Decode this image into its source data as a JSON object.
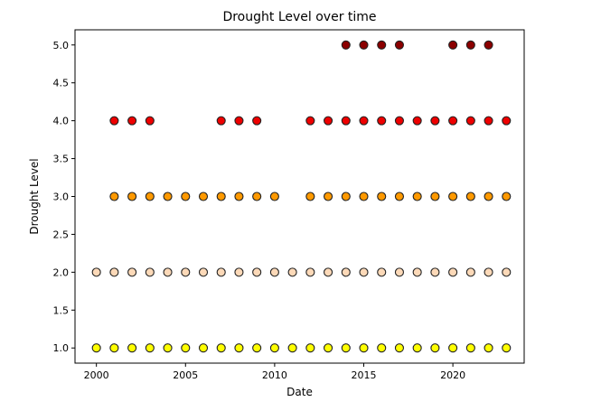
{
  "chart_data": {
    "type": "scatter",
    "title": "Drought Level over time",
    "xlabel": "Date",
    "ylabel": "Drought Level",
    "xlim": [
      1998.8,
      2024.0
    ],
    "ylim": [
      0.8,
      5.2
    ],
    "xticks": [
      2000,
      2005,
      2010,
      2015,
      2020
    ],
    "xtick_labels": [
      "2000",
      "2005",
      "2010",
      "2015",
      "2020"
    ],
    "yticks": [
      1.0,
      1.5,
      2.0,
      2.5,
      3.0,
      3.5,
      4.0,
      4.5,
      5.0
    ],
    "ytick_labels": [
      "1.0",
      "1.5",
      "2.0",
      "2.5",
      "3.0",
      "3.5",
      "4.0",
      "4.5",
      "5.0"
    ],
    "grid": false,
    "legend": "none",
    "series": [
      {
        "level": 1,
        "color": "#ffff00",
        "x": [
          2000,
          2001,
          2002,
          2003,
          2004,
          2005,
          2006,
          2007,
          2008,
          2009,
          2010,
          2011,
          2012,
          2013,
          2014,
          2015,
          2016,
          2017,
          2018,
          2019,
          2020,
          2021,
          2022,
          2023
        ],
        "y": [
          1,
          1,
          1,
          1,
          1,
          1,
          1,
          1,
          1,
          1,
          1,
          1,
          1,
          1,
          1,
          1,
          1,
          1,
          1,
          1,
          1,
          1,
          1,
          1
        ]
      },
      {
        "level": 2,
        "color": "#fcd9b8",
        "x": [
          2000,
          2001,
          2002,
          2003,
          2004,
          2005,
          2006,
          2007,
          2008,
          2009,
          2010,
          2011,
          2012,
          2013,
          2014,
          2015,
          2016,
          2017,
          2018,
          2019,
          2020,
          2021,
          2022,
          2023
        ],
        "y": [
          2,
          2,
          2,
          2,
          2,
          2,
          2,
          2,
          2,
          2,
          2,
          2,
          2,
          2,
          2,
          2,
          2,
          2,
          2,
          2,
          2,
          2,
          2,
          2
        ]
      },
      {
        "level": 3,
        "color": "#ff9900",
        "x": [
          2001,
          2002,
          2003,
          2004,
          2005,
          2006,
          2007,
          2008,
          2009,
          2010,
          2012,
          2013,
          2014,
          2015,
          2016,
          2017,
          2018,
          2019,
          2020,
          2021,
          2022,
          2023
        ],
        "y": [
          3,
          3,
          3,
          3,
          3,
          3,
          3,
          3,
          3,
          3,
          3,
          3,
          3,
          3,
          3,
          3,
          3,
          3,
          3,
          3,
          3,
          3
        ]
      },
      {
        "level": 4,
        "color": "#ee0000",
        "x": [
          2001,
          2002,
          2003,
          2007,
          2008,
          2009,
          2012,
          2013,
          2014,
          2015,
          2016,
          2017,
          2018,
          2019,
          2020,
          2021,
          2022,
          2023
        ],
        "y": [
          4,
          4,
          4,
          4,
          4,
          4,
          4,
          4,
          4,
          4,
          4,
          4,
          4,
          4,
          4,
          4,
          4,
          4
        ]
      },
      {
        "level": 5,
        "color": "#8b0000",
        "x": [
          2014,
          2015,
          2016,
          2017,
          2020,
          2021,
          2022
        ],
        "y": [
          5,
          5,
          5,
          5,
          5,
          5,
          5
        ]
      }
    ]
  }
}
